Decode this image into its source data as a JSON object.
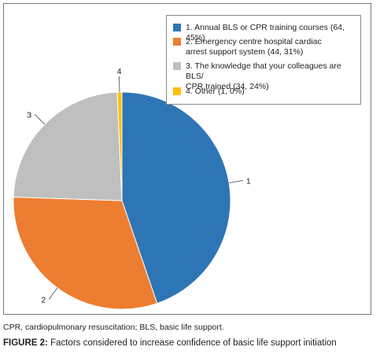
{
  "chart_data": {
    "type": "pie",
    "categories": [
      "1. Annual BLS or CPR training courses (64, 45%)",
      "2. Emergency centre hospital cardiac\narrest support system (44, 31%)",
      "3. The knowledge that your colleagues are BLS/\nCPR trained (34, 24%)",
      "4. Other (1, 0%)"
    ],
    "slice_labels": [
      "1",
      "2",
      "3",
      "4"
    ],
    "values": [
      64,
      44,
      34,
      1
    ],
    "colors": [
      "#2e75b6",
      "#ed7d31",
      "#bfbfbf",
      "#ffc000"
    ],
    "legend_position": "top-right",
    "start": "12 o'clock",
    "direction": "clockwise"
  },
  "footnote": "CPR, cardiopulmonary resuscitation; BLS, basic life support.",
  "caption": {
    "label": "FIGURE 2:",
    "text": " Factors considered to increase confidence of basic life support initiation"
  }
}
